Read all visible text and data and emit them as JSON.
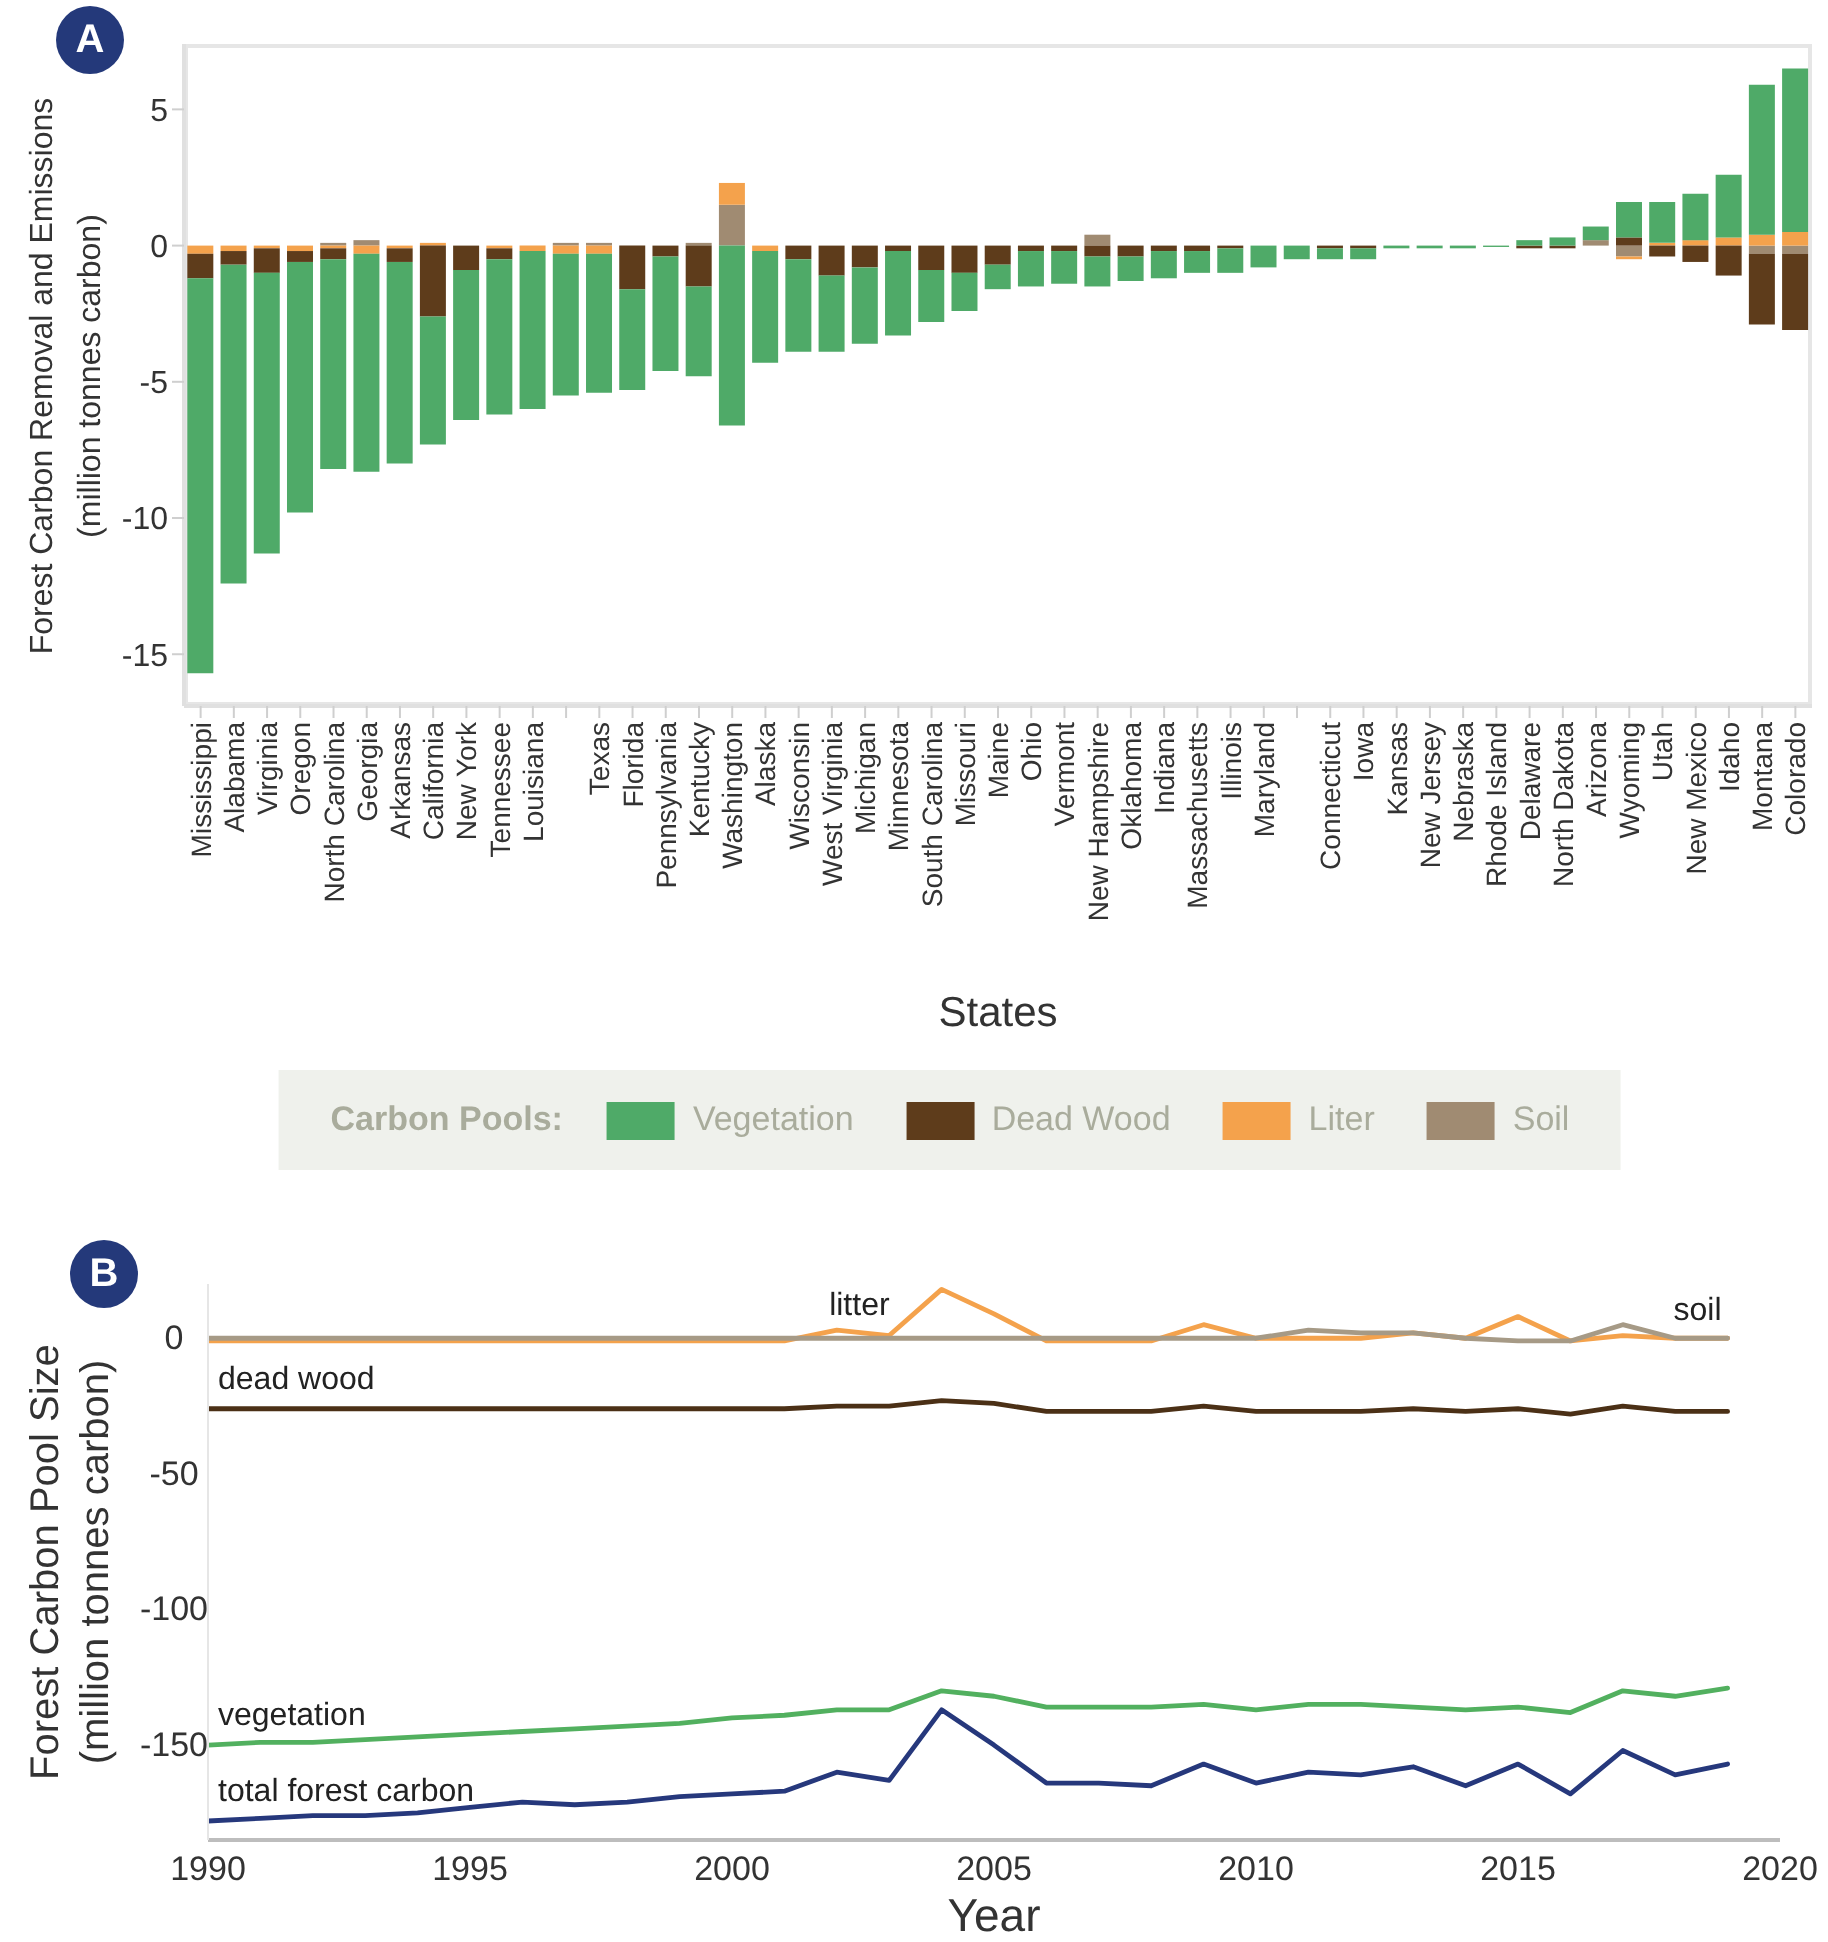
{
  "chart_data": [
    {
      "type": "bar",
      "annotations": [
        "A"
      ],
      "xlabel": "States",
      "ylabel": "Forest Carbon Removal and Emissions\n(million tonnes carbon)",
      "categories": [
        "Mississippi",
        "Alabama",
        "Virginia",
        "Oregon",
        "North Carolina",
        "Georgia",
        "Arkansas",
        "California",
        "New York",
        "Tennessee",
        "Louisiana",
        null,
        "Texas",
        "Florida",
        "Pennsylvania",
        "Kentucky",
        "Washington",
        "Alaska",
        "Wisconsin",
        "West Virginia",
        "Michigan",
        "Minnesota",
        "South Carolina",
        "Missouri",
        "Maine",
        "Ohio",
        "Vermont",
        "New Hampshire",
        "Oklahoma",
        "Indiana",
        "Massachusetts",
        "Illinois",
        "Maryland",
        null,
        "Connecticut",
        "Iowa",
        "Kansas",
        "New Jersey",
        "Nebraska",
        "Rhode Island",
        "Delaware",
        "North Dakota",
        "Arizona",
        "Wyoming",
        "Utah",
        "New Mexico",
        "Idaho",
        "Montana",
        "Colorado"
      ],
      "series": [
        {
          "name": "Soil",
          "color": "#a08b72",
          "values": [
            null,
            null,
            null,
            null,
            0.1,
            0.2,
            null,
            null,
            null,
            null,
            null,
            0.1,
            0.1,
            null,
            null,
            0.1,
            1.5,
            null,
            null,
            null,
            null,
            null,
            null,
            null,
            null,
            null,
            null,
            0.4,
            null,
            null,
            null,
            null,
            null,
            null,
            null,
            null,
            null,
            null,
            null,
            null,
            null,
            null,
            0.2,
            -0.4,
            null,
            null,
            null,
            -0.3,
            -0.3
          ]
        },
        {
          "name": "Liter",
          "color": "#f4a24c",
          "values": [
            -0.3,
            -0.2,
            -0.1,
            -0.2,
            -0.1,
            -0.3,
            -0.1,
            0.1,
            null,
            -0.1,
            -0.2,
            -0.3,
            -0.3,
            null,
            null,
            null,
            0.8,
            -0.2,
            null,
            null,
            null,
            null,
            null,
            null,
            null,
            null,
            null,
            null,
            null,
            null,
            null,
            null,
            null,
            null,
            null,
            null,
            null,
            null,
            null,
            null,
            null,
            null,
            null,
            -0.1,
            0.1,
            0.2,
            0.3,
            0.4,
            0.5
          ]
        },
        {
          "name": "Dead Wood",
          "color": "#5e3c1b",
          "values": [
            -0.9,
            -0.5,
            -0.9,
            -0.4,
            -0.4,
            null,
            -0.5,
            -2.6,
            -0.9,
            -0.4,
            null,
            null,
            null,
            -1.6,
            -0.4,
            -1.5,
            null,
            null,
            -0.5,
            -1.1,
            -0.8,
            -0.2,
            -0.9,
            -1.0,
            -0.7,
            -0.2,
            -0.2,
            -0.4,
            -0.4,
            -0.2,
            -0.2,
            -0.1,
            null,
            null,
            -0.1,
            -0.1,
            null,
            null,
            null,
            null,
            -0.1,
            -0.1,
            null,
            0.3,
            -0.4,
            -0.6,
            -1.1,
            -2.6,
            -2.8
          ]
        },
        {
          "name": "Vegetation",
          "color": "#4faa68",
          "values": [
            -14.5,
            -11.7,
            -10.3,
            -9.2,
            -7.7,
            -8.0,
            -7.4,
            -4.7,
            -5.5,
            -5.7,
            -5.8,
            -5.2,
            -5.1,
            -3.7,
            -4.2,
            -3.3,
            -6.6,
            -4.1,
            -3.4,
            -2.8,
            -2.8,
            -3.1,
            -1.9,
            -1.4,
            -0.9,
            -1.3,
            -1.2,
            -1.1,
            -0.9,
            -1.0,
            -0.8,
            -0.9,
            -0.8,
            -0.5,
            -0.4,
            -0.4,
            -0.1,
            -0.1,
            -0.1,
            -0.05,
            0.2,
            0.3,
            0.5,
            1.3,
            1.5,
            1.7,
            2.3,
            5.5,
            6.0
          ]
        }
      ],
      "stacked": true,
      "ylim": [
        -16.9,
        7.4
      ],
      "yticks": [
        -15,
        -10,
        -5,
        0,
        5
      ],
      "legend": "bottom",
      "legend_title": "Carbon Pools:"
    },
    {
      "type": "line",
      "annotations": [
        "B"
      ],
      "xlabel": "Year",
      "ylabel": "Forest Carbon Pool Size\n(million tonnes carbon)",
      "x": [
        1990,
        1991,
        1992,
        1993,
        1994,
        1995,
        1996,
        1997,
        1998,
        1999,
        2000,
        2001,
        2002,
        2003,
        2004,
        2005,
        2006,
        2007,
        2008,
        2009,
        2010,
        2011,
        2012,
        2013,
        2014,
        2015,
        2016,
        2017,
        2018,
        2019
      ],
      "series": [
        {
          "name": "total forest carbon",
          "color": "#26387c",
          "values": [
            -178,
            -177,
            -176,
            -176,
            -175,
            -173,
            -171,
            -172,
            -171,
            -169,
            -168,
            -167,
            -160,
            -163,
            -137,
            -150,
            -164,
            -164,
            -165,
            -157,
            -164,
            -160,
            -161,
            -158,
            -165,
            -157,
            -168,
            -152,
            -161,
            -157
          ]
        },
        {
          "name": "vegetation",
          "color": "#52b05f",
          "values": [
            -150,
            -149,
            -149,
            -148,
            -147,
            -146,
            -145,
            -144,
            -143,
            -142,
            -140,
            -139,
            -137,
            -137,
            -130,
            -132,
            -136,
            -136,
            -136,
            -135,
            -137,
            -135,
            -135,
            -136,
            -137,
            -136,
            -138,
            -130,
            -132,
            -129
          ]
        },
        {
          "name": "dead wood",
          "color": "#4b3016",
          "values": [
            -26,
            -26,
            -26,
            -26,
            -26,
            -26,
            -26,
            -26,
            -26,
            -26,
            -26,
            -26,
            -25,
            -25,
            -23,
            -24,
            -27,
            -27,
            -27,
            -25,
            -27,
            -27,
            -27,
            -26,
            -27,
            -26,
            -28,
            -25,
            -27,
            -27
          ]
        },
        {
          "name": "litter",
          "color": "#f4a24c",
          "values": [
            -1,
            -1,
            -1,
            -1,
            -1,
            -1,
            -1,
            -1,
            -1,
            -1,
            -1,
            -1,
            3,
            1,
            18,
            9,
            -1,
            -1,
            -1,
            5,
            0,
            0,
            0,
            2,
            0,
            8,
            -1,
            1,
            0,
            0
          ]
        },
        {
          "name": "soil",
          "color": "#a69a86",
          "values": [
            0,
            0,
            0,
            0,
            0,
            0,
            0,
            0,
            0,
            0,
            0,
            0,
            0,
            0,
            0,
            0,
            0,
            0,
            0,
            0,
            0,
            3,
            2,
            2,
            0,
            -1,
            -1,
            5,
            0,
            0
          ]
        }
      ],
      "xlim": [
        1990,
        2020
      ],
      "xticks": [
        1990,
        1995,
        2000,
        2005,
        2010,
        2015,
        2020
      ],
      "ylim": [
        -185,
        20
      ],
      "yticks": [
        -150,
        -100,
        -50,
        0
      ],
      "marker": "none"
    }
  ]
}
